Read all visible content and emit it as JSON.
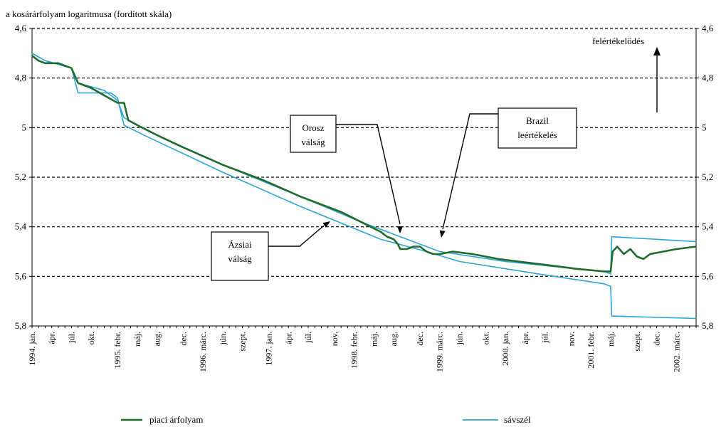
{
  "chart_data": {
    "type": "line",
    "title": "a kosárárfolyam logaritmusa (fordított skála)",
    "yaxis": {
      "reversed": true,
      "ylim": [
        4.6,
        5.8
      ],
      "ticks": [
        "4,6",
        "4,8",
        "5",
        "5,2",
        "5,4",
        "5,6",
        "5,8"
      ],
      "tick_values": [
        4.6,
        4.8,
        5.0,
        5.2,
        5.4,
        5.6,
        5.8
      ],
      "grid": true
    },
    "xaxis": {
      "range": [
        "1994-01",
        "2002-06"
      ],
      "tick_labels": [
        "1994. jan.",
        "ápr.",
        "júl.",
        "okt.",
        "1995. febr.",
        "máj.",
        "aug.",
        "dec.",
        "1996. márc.",
        "jún.",
        "szept.",
        "1997. jan.",
        "ápr.",
        "júl.",
        "nov.",
        "1998. febr.",
        "máj.",
        "aug.",
        "dec.",
        "1999. márc.",
        "jún.",
        "okt.",
        "2000. jan.",
        "ápr.",
        "júl.",
        "nov.",
        "2001. febr.",
        "máj.",
        "szept.",
        "dec.",
        "2002. márc."
      ],
      "tick_dates": [
        "1994-01",
        "1994-04",
        "1994-07",
        "1994-10",
        "1995-02",
        "1995-05",
        "1995-08",
        "1995-12",
        "1996-03",
        "1996-06",
        "1996-09",
        "1997-01",
        "1997-04",
        "1997-07",
        "1997-11",
        "1998-02",
        "1998-05",
        "1998-08",
        "1998-12",
        "1999-03",
        "1999-06",
        "1999-10",
        "2000-01",
        "2000-04",
        "2000-07",
        "2000-11",
        "2001-02",
        "2001-05",
        "2001-09",
        "2001-12",
        "2002-03"
      ]
    },
    "series": [
      {
        "name": "piaci árfolyam",
        "color": "#1f6b2e",
        "points": [
          [
            "1994-01",
            4.71
          ],
          [
            "1994-02",
            4.73
          ],
          [
            "1994-03",
            4.74
          ],
          [
            "1994-05",
            4.74
          ],
          [
            "1994-06",
            4.75
          ],
          [
            "1994-07",
            4.76
          ],
          [
            "1994-08",
            4.82
          ],
          [
            "1994-10",
            4.84
          ],
          [
            "1994-12",
            4.87
          ],
          [
            "1995-02",
            4.9
          ],
          [
            "1995-03",
            4.9
          ],
          [
            "1995-03-20",
            4.97
          ],
          [
            "1995-05",
            4.99
          ],
          [
            "1995-08",
            5.03
          ],
          [
            "1995-12",
            5.08
          ],
          [
            "1996-06",
            5.15
          ],
          [
            "1996-12",
            5.21
          ],
          [
            "1997-06",
            5.28
          ],
          [
            "1997-12",
            5.34
          ],
          [
            "1998-03",
            5.38
          ],
          [
            "1998-06",
            5.42
          ],
          [
            "1998-07",
            5.44
          ],
          [
            "1998-08",
            5.45
          ],
          [
            "1998-08-20",
            5.47
          ],
          [
            "1998-09",
            5.49
          ],
          [
            "1998-10",
            5.49
          ],
          [
            "1998-11",
            5.48
          ],
          [
            "1998-12",
            5.48
          ],
          [
            "1999-01",
            5.5
          ],
          [
            "1999-02",
            5.51
          ],
          [
            "1999-03",
            5.51
          ],
          [
            "1999-05",
            5.5
          ],
          [
            "1999-08",
            5.51
          ],
          [
            "1999-12",
            5.53
          ],
          [
            "2000-06",
            5.55
          ],
          [
            "2000-12",
            5.57
          ],
          [
            "2001-04",
            5.58
          ],
          [
            "2001-05",
            5.58
          ],
          [
            "2001-05-10",
            5.5
          ],
          [
            "2001-06",
            5.48
          ],
          [
            "2001-07",
            5.51
          ],
          [
            "2001-08",
            5.49
          ],
          [
            "2001-09",
            5.52
          ],
          [
            "2001-10",
            5.53
          ],
          [
            "2001-11",
            5.51
          ],
          [
            "2002-01",
            5.5
          ],
          [
            "2002-03",
            5.49
          ],
          [
            "2002-06",
            5.48
          ]
        ]
      },
      {
        "name": "sávszél",
        "color": "#2ea3d6",
        "upper": [
          [
            "1994-01",
            4.7
          ],
          [
            "1994-03",
            4.73
          ],
          [
            "1994-07",
            4.76
          ],
          [
            "1994-08",
            4.82
          ],
          [
            "1994-12",
            4.85
          ],
          [
            "1995-02",
            4.89
          ],
          [
            "1995-03",
            4.96
          ],
          [
            "1995-08",
            5.03
          ],
          [
            "1996-06",
            5.15
          ],
          [
            "1997-06",
            5.28
          ],
          [
            "1998-03",
            5.38
          ],
          [
            "1998-09",
            5.44
          ],
          [
            "1999-03",
            5.5
          ],
          [
            "2000-01",
            5.54
          ],
          [
            "2000-12",
            5.57
          ],
          [
            "2001-04",
            5.58
          ],
          [
            "2001-05",
            5.59
          ],
          [
            "2001-05-06",
            5.44
          ],
          [
            "2002-06",
            5.46
          ]
        ],
        "lower": [
          [
            "1994-01",
            4.7
          ],
          [
            "1994-03",
            4.73
          ],
          [
            "1994-07",
            4.76
          ],
          [
            "1994-08",
            4.86
          ],
          [
            "1995-01",
            4.86
          ],
          [
            "1995-02",
            4.88
          ],
          [
            "1995-03",
            4.99
          ],
          [
            "1995-06",
            5.03
          ],
          [
            "1996-06",
            5.18
          ],
          [
            "1997-06",
            5.32
          ],
          [
            "1998-06",
            5.45
          ],
          [
            "1999-01",
            5.5
          ],
          [
            "1999-06",
            5.54
          ],
          [
            "2000-06",
            5.59
          ],
          [
            "2001-04",
            5.63
          ],
          [
            "2001-05",
            5.64
          ],
          [
            "2001-05-06",
            5.76
          ],
          [
            "2002-06",
            5.77
          ]
        ]
      }
    ],
    "annotations": [
      {
        "lines": [
          "Orosz",
          "válság"
        ]
      },
      {
        "lines": [
          "Brazil",
          "leértékelés"
        ]
      },
      {
        "lines": [
          "Ázsiai",
          "válság"
        ]
      },
      {
        "text": "felértékelődés"
      }
    ],
    "legend": {
      "placement": "bottom"
    }
  }
}
